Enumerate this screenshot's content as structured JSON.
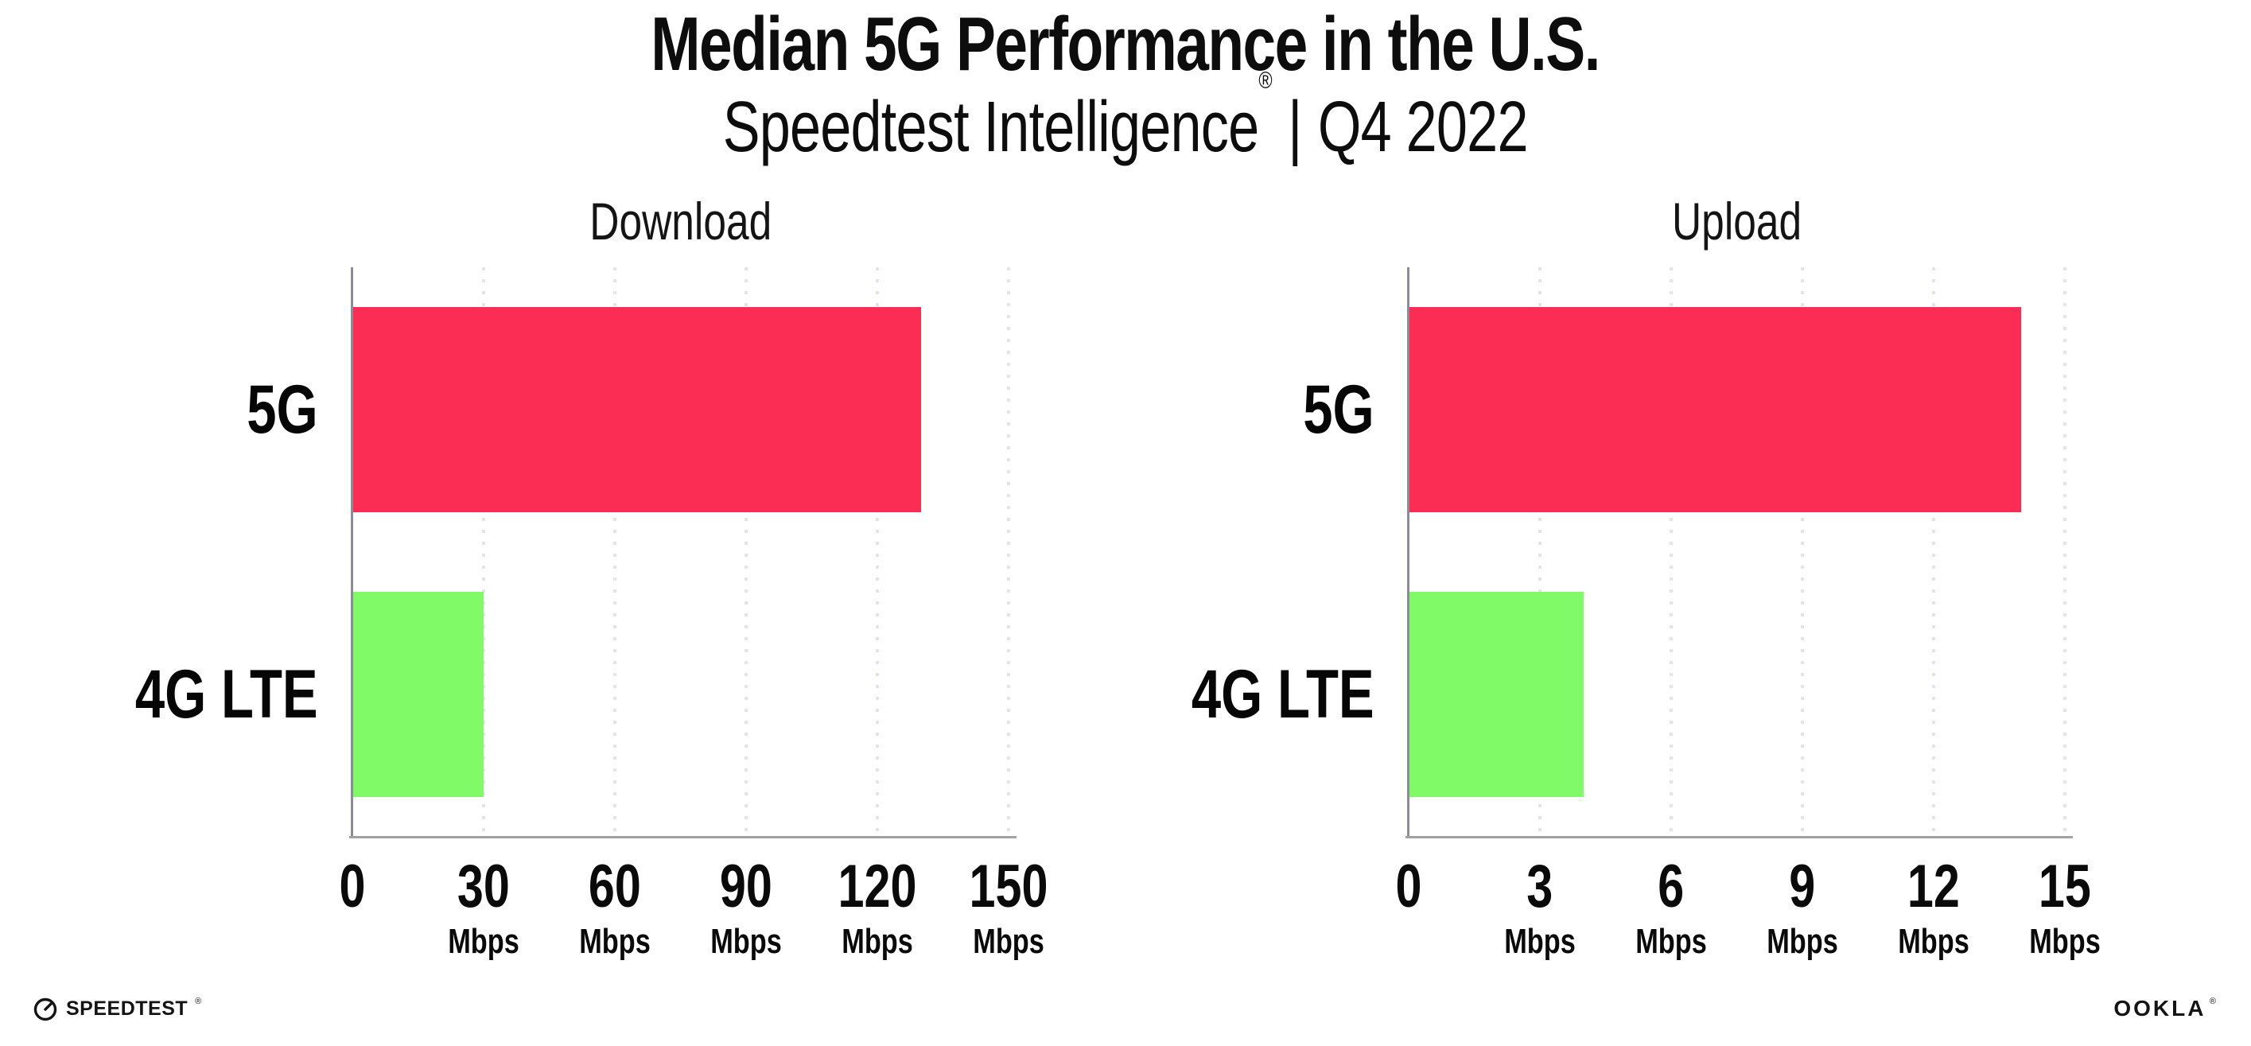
{
  "header": {
    "title": "Median 5G Performance in the U.S.",
    "subtitle_product": "Speedtest Intelligence",
    "subtitle_reg": "®",
    "subtitle_separator": "|",
    "subtitle_period": "Q4 2022"
  },
  "chart_data": [
    {
      "type": "bar",
      "orientation": "horizontal",
      "title": "Download",
      "categories": [
        "5G",
        "4G LTE"
      ],
      "values": [
        130,
        30
      ],
      "unit": "Mbps",
      "xlim": [
        0,
        150
      ],
      "xticks": [
        0,
        30,
        60,
        90,
        120,
        150
      ],
      "colors": [
        "#FC2D55",
        "#80FA66"
      ],
      "grid": "vertical-dotted",
      "legend": "none",
      "xlabel": "",
      "ylabel": ""
    },
    {
      "type": "bar",
      "orientation": "horizontal",
      "title": "Upload",
      "categories": [
        "5G",
        "4G LTE"
      ],
      "values": [
        14,
        4
      ],
      "unit": "Mbps",
      "xlim": [
        0,
        15
      ],
      "xticks": [
        0,
        3,
        6,
        9,
        12,
        15
      ],
      "colors": [
        "#FC2D55",
        "#80FA66"
      ],
      "grid": "vertical-dotted",
      "legend": "none",
      "xlabel": "",
      "ylabel": ""
    }
  ],
  "colors": {
    "bar_5g": "#FC2D55",
    "bar_4g_lte": "#80FA66",
    "gridline": "#E3E3EE",
    "x_axis": "#A2A2A2",
    "y_axis": "#8C8C96",
    "text": "#0D0D0D"
  },
  "footer": {
    "speedtest_icon": "gauge-icon",
    "speedtest_label": "SPEEDTEST",
    "speedtest_mark": "®",
    "ookla_label": "OOKLA",
    "ookla_mark": "®"
  }
}
